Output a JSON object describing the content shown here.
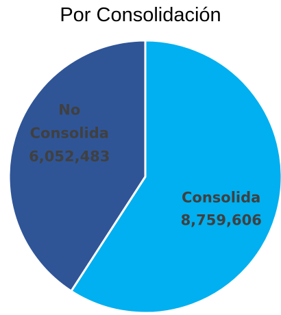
{
  "chart_data": {
    "type": "pie",
    "title": "Por Consolidación",
    "categories": [
      "Consolida",
      "No Consolida"
    ],
    "values": [
      8759606,
      6052483
    ],
    "value_labels": [
      "8,759,606",
      "6,052,483"
    ],
    "colors": [
      "#00b0f0",
      "#2f5597"
    ]
  }
}
